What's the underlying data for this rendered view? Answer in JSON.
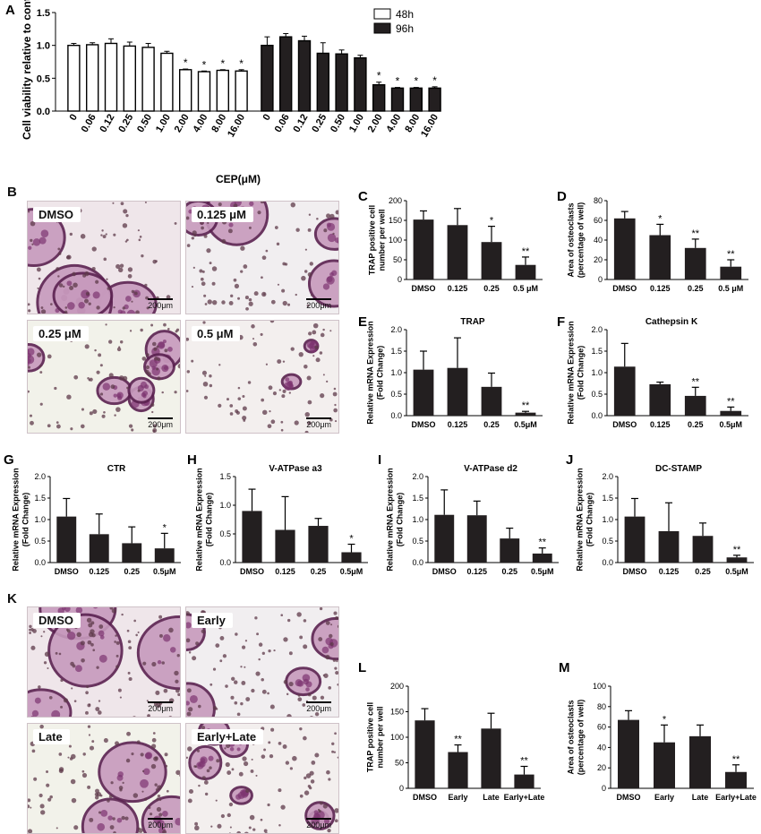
{
  "panel_letters": {
    "A": "A",
    "B": "B",
    "K": "K"
  },
  "micrographs": {
    "B": [
      {
        "label": "DMSO",
        "scale": "200μm"
      },
      {
        "label": "0.125 μM",
        "scale": "200μm"
      },
      {
        "label": "0.25 μM",
        "scale": "200μm"
      },
      {
        "label": "0.5 μM",
        "scale": "200μm"
      }
    ],
    "K": [
      {
        "label": "DMSO",
        "scale": "200μm"
      },
      {
        "label": "Early",
        "scale": "200μm"
      },
      {
        "label": "Late",
        "scale": "200μm"
      },
      {
        "label": "Early+Late",
        "scale": "200μm"
      }
    ]
  },
  "colors": {
    "bar48": "#ffffff",
    "bar96": "#231f20",
    "bar": "#231f20",
    "stroke": "#000000"
  },
  "chart_data": [
    {
      "panel": "A",
      "type": "bar",
      "categories": [
        "0",
        "0.06",
        "0.12",
        "0.25",
        "0.50",
        "1.00",
        "2.00",
        "4.00",
        "8.00",
        "16.00"
      ],
      "series": [
        {
          "name": "48h",
          "values": [
            1.0,
            1.01,
            1.03,
            0.99,
            0.97,
            0.88,
            0.63,
            0.6,
            0.62,
            0.61
          ],
          "errors": [
            0.03,
            0.03,
            0.07,
            0.06,
            0.06,
            0.03,
            0.01,
            0.01,
            0.01,
            0.02
          ],
          "sig": [
            "",
            "",
            "",
            "",
            "",
            "",
            "*",
            "*",
            "*",
            "*"
          ]
        },
        {
          "name": "96h",
          "values": [
            1.0,
            1.13,
            1.07,
            0.88,
            0.87,
            0.81,
            0.4,
            0.35,
            0.35,
            0.35
          ],
          "errors": [
            0.13,
            0.05,
            0.07,
            0.16,
            0.06,
            0.04,
            0.04,
            0.01,
            0.01,
            0.02
          ],
          "sig": [
            "",
            "",
            "",
            "",
            "",
            "",
            "*",
            "*",
            "*",
            "*"
          ]
        }
      ],
      "xlabel": "CEP(μM)",
      "ylabel": "Cell viability relative to control",
      "ylim": [
        0,
        1.5
      ],
      "yticks": [
        "0.0",
        "0.5",
        "1.0",
        "1.5"
      ],
      "legend": "top-right"
    },
    {
      "panel": "C",
      "type": "bar",
      "categories": [
        "DMSO",
        "0.125",
        "0.25",
        "0.5 μM"
      ],
      "values": [
        152,
        138,
        95,
        37
      ],
      "errors": [
        22,
        42,
        40,
        20
      ],
      "sig": [
        "",
        "",
        "*",
        "**"
      ],
      "ylabel": "TRAP positive cell number per well",
      "ylim": [
        0,
        200
      ],
      "yticks": [
        "0",
        "50",
        "100",
        "150",
        "200"
      ],
      "title": ""
    },
    {
      "panel": "D",
      "type": "bar",
      "categories": [
        "DMSO",
        "0.125",
        "0.25",
        "0.5 μM"
      ],
      "values": [
        62,
        45,
        32,
        13
      ],
      "errors": [
        7,
        11,
        9,
        7
      ],
      "sig": [
        "",
        "*",
        "**",
        "**"
      ],
      "ylabel": "Area of osteoclasts (percentage of well)",
      "ylim": [
        0,
        80
      ],
      "yticks": [
        "0",
        "20",
        "40",
        "60",
        "80"
      ],
      "title": ""
    },
    {
      "panel": "E",
      "type": "bar",
      "categories": [
        "DMSO",
        "0.125",
        "0.25",
        "0.5μM"
      ],
      "values": [
        1.07,
        1.11,
        0.67,
        0.07
      ],
      "errors": [
        0.43,
        0.7,
        0.32,
        0.03
      ],
      "sig": [
        "",
        "",
        "",
        "**"
      ],
      "ylabel": "Relative mRNA Expression (Fold Change)",
      "ylim": [
        0,
        2.0
      ],
      "yticks": [
        "0.0",
        "0.5",
        "1.0",
        "1.5",
        "2.0"
      ],
      "title": "TRAP"
    },
    {
      "panel": "F",
      "type": "bar",
      "categories": [
        "DMSO",
        "0.125",
        "0.25",
        "0.5μM"
      ],
      "values": [
        1.14,
        0.73,
        0.46,
        0.11
      ],
      "errors": [
        0.54,
        0.05,
        0.2,
        0.09
      ],
      "sig": [
        "",
        "",
        "**",
        "**"
      ],
      "ylabel": "Relative mRNA Expression (Fold Change)",
      "ylim": [
        0,
        2.0
      ],
      "yticks": [
        "0.0",
        "0.5",
        "1.0",
        "1.5",
        "2.0"
      ],
      "title": "Cathepsin K"
    },
    {
      "panel": "G",
      "type": "bar",
      "categories": [
        "DMSO",
        "0.125",
        "0.25",
        "0.5μM"
      ],
      "values": [
        1.07,
        0.66,
        0.45,
        0.33
      ],
      "errors": [
        0.42,
        0.47,
        0.38,
        0.35
      ],
      "sig": [
        "",
        "",
        "",
        "*"
      ],
      "ylabel": "Relative mRNA Expression (Fold Change)",
      "ylim": [
        0,
        2.0
      ],
      "yticks": [
        "0.0",
        "0.5",
        "1.0",
        "1.5",
        "2.0"
      ],
      "title": "CTR"
    },
    {
      "panel": "H",
      "type": "bar",
      "categories": [
        "DMSO",
        "0.125",
        "0.25",
        "0.5μM"
      ],
      "values": [
        0.9,
        0.57,
        0.64,
        0.18
      ],
      "errors": [
        0.38,
        0.58,
        0.13,
        0.14
      ],
      "sig": [
        "",
        "",
        "",
        "*"
      ],
      "ylabel": "Relative mRNA Expression (Fold Change)",
      "ylim": [
        0,
        1.5
      ],
      "yticks": [
        "0.0",
        "0.5",
        "1.0",
        "1.5"
      ],
      "title": "V-ATPase a3"
    },
    {
      "panel": "I",
      "type": "bar",
      "categories": [
        "DMSO",
        "0.125",
        "0.25",
        "0.5μM"
      ],
      "values": [
        1.11,
        1.1,
        0.56,
        0.21
      ],
      "errors": [
        0.58,
        0.33,
        0.24,
        0.13
      ],
      "sig": [
        "",
        "",
        "",
        "**"
      ],
      "ylabel": "Relative mRNA Expression (Fold Change)",
      "ylim": [
        0,
        2.0
      ],
      "yticks": [
        "0.0",
        "0.5",
        "1.0",
        "1.5",
        "2.0"
      ],
      "title": "V-ATPase d2"
    },
    {
      "panel": "J",
      "type": "bar",
      "categories": [
        "DMSO",
        "0.125",
        "0.25",
        "0.5μM"
      ],
      "values": [
        1.07,
        0.73,
        0.62,
        0.12
      ],
      "errors": [
        0.42,
        0.66,
        0.3,
        0.05
      ],
      "sig": [
        "",
        "",
        "",
        "**"
      ],
      "ylabel": "Relative mRNA Expression (Fold Change)",
      "ylim": [
        0,
        2.0
      ],
      "yticks": [
        "0.0",
        "0.5",
        "1.0",
        "1.5",
        "2.0"
      ],
      "title": "DC-STAMP"
    },
    {
      "panel": "L",
      "type": "bar",
      "categories": [
        "DMSO",
        "Early",
        "Late",
        "Early+Late"
      ],
      "values": [
        133,
        71,
        117,
        27
      ],
      "errors": [
        23,
        14,
        30,
        16
      ],
      "sig": [
        "",
        "**",
        "",
        "**"
      ],
      "ylabel": "TRAP positive cell number per well",
      "ylim": [
        0,
        200
      ],
      "yticks": [
        "0",
        "50",
        "100",
        "150",
        "200"
      ],
      "title": ""
    },
    {
      "panel": "M",
      "type": "bar",
      "categories": [
        "DMSO",
        "Early",
        "Late",
        "Early+Late"
      ],
      "values": [
        67,
        45,
        51,
        16
      ],
      "errors": [
        9,
        17,
        11,
        7
      ],
      "sig": [
        "",
        "*",
        "",
        "**"
      ],
      "ylabel": "Area of osteoclasts (percentage of well)",
      "ylim": [
        0,
        100
      ],
      "yticks": [
        "0",
        "20",
        "40",
        "60",
        "80",
        "100"
      ],
      "title": ""
    }
  ]
}
